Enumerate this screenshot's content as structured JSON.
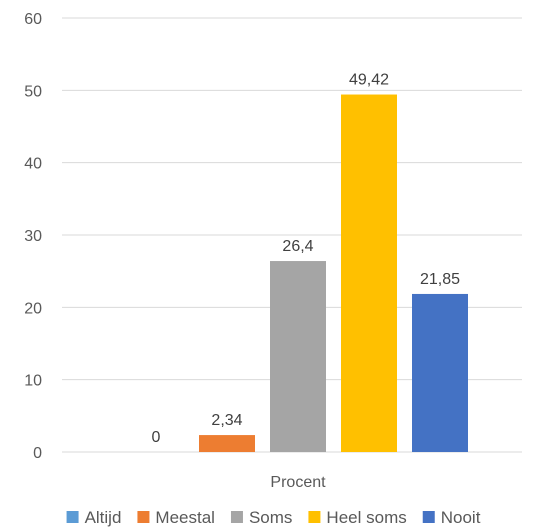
{
  "chart_data": {
    "type": "bar",
    "title": "",
    "xlabel": "Procent",
    "ylabel": "",
    "ylim": [
      0,
      60
    ],
    "yticks": [
      0,
      10,
      20,
      30,
      40,
      50,
      60
    ],
    "grid": true,
    "legend_position": "bottom",
    "categories": [
      "Procent"
    ],
    "series": [
      {
        "name": "Altijd",
        "value": 0,
        "label": "0",
        "color": "#5B9BD5"
      },
      {
        "name": "Meestal",
        "value": 2.34,
        "label": "2,34",
        "color": "#ED7D31"
      },
      {
        "name": "Soms",
        "value": 26.4,
        "label": "26,4",
        "color": "#A5A5A5"
      },
      {
        "name": "Heel soms",
        "value": 49.42,
        "label": "49,42",
        "color": "#FFC000"
      },
      {
        "name": "Nooit",
        "value": 21.85,
        "label": "21,85",
        "color": "#4472C4"
      }
    ]
  }
}
